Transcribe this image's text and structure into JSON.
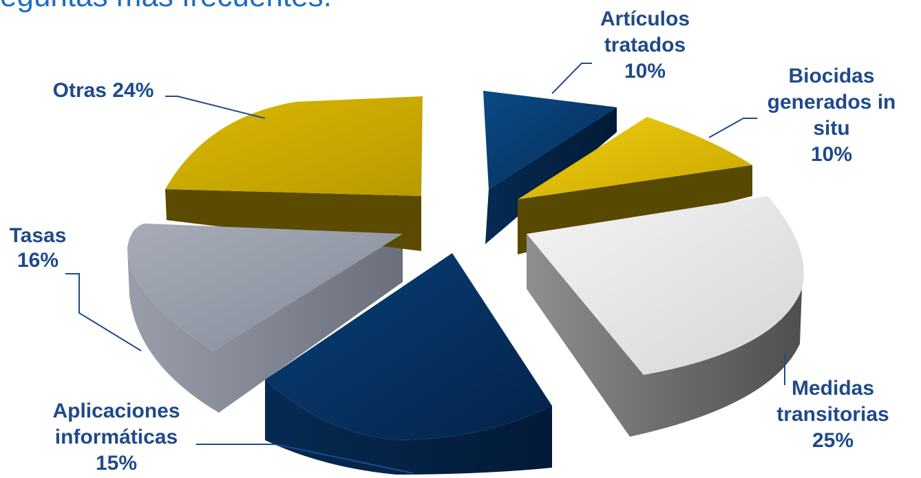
{
  "page": {
    "title": "eguntas más frecuentes."
  },
  "chart_data": {
    "type": "pie",
    "style": "3d-exploded",
    "title": "",
    "slices": [
      {
        "label_lines": [
          "Artículos",
          "tratados",
          "10%"
        ],
        "name": "Artículos tratados",
        "value": 10,
        "color": "#073a6e"
      },
      {
        "label_lines": [
          "Biocidas",
          "generados in",
          "situ",
          "10%"
        ],
        "name": "Biocidas generados in situ",
        "value": 10,
        "color": "#e0bd00"
      },
      {
        "label_lines": [
          "Medidas",
          "transitorias",
          "25%"
        ],
        "name": "Medidas transitorias",
        "value": 25,
        "color": "#e3e3e3"
      },
      {
        "label_lines": [
          "Aplicaciones",
          "informáticas",
          "15%"
        ],
        "name": "Aplicaciones informáticas",
        "value": 15,
        "color": "#06305e"
      },
      {
        "label_lines": [
          "Tasas",
          "16%"
        ],
        "name": "Tasas",
        "value": 16,
        "color": "#959aa8"
      },
      {
        "label_lines": [
          "Otras 24%"
        ],
        "name": "Otras",
        "value": 24,
        "color": "#d2b000"
      }
    ]
  }
}
